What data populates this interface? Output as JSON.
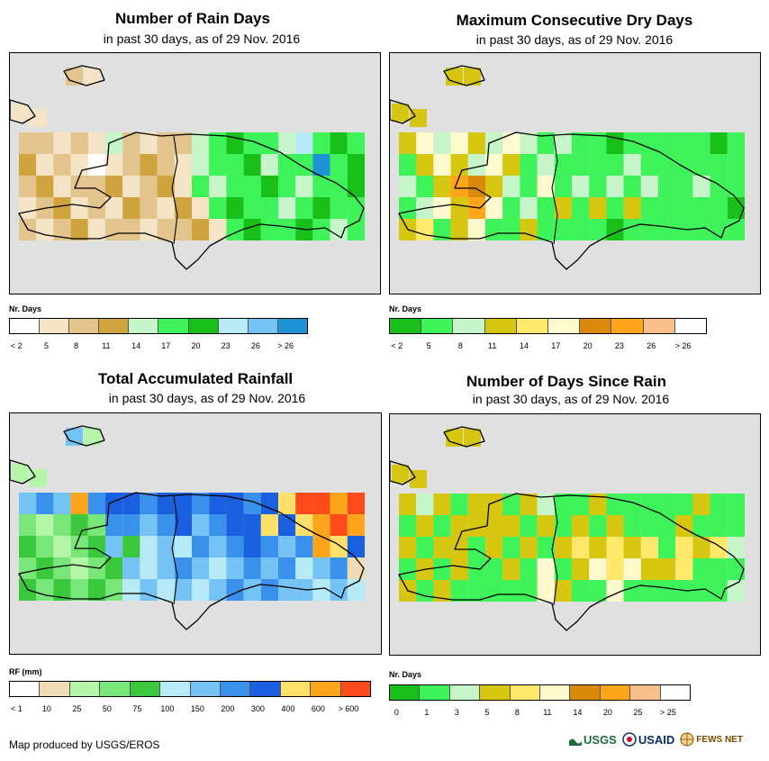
{
  "panels": [
    {
      "id": "rain-days",
      "title": "Number of Rain Days",
      "subtitle": "in past 30 days, as of 29 Nov. 2016",
      "legend_title": "Nr. Days",
      "legend_colors": [
        "#ffffff",
        "#f5e3c5",
        "#e3c48c",
        "#cfa33d",
        "#c5f5c8",
        "#3ef25a",
        "#19c019",
        "#b6eaf7",
        "#74c3f4",
        "#1e94d6"
      ],
      "legend_labels": [
        "< 2",
        "5",
        "8",
        "11",
        "14",
        "17",
        "20",
        "23",
        "26",
        "> 26"
      ],
      "grid_colors": [
        [
          "#e3c48c",
          "#e3c48c",
          "#f5e3c5",
          "#e3c48c",
          "#f5e3c5",
          "#c5f5c8",
          "#e3c48c",
          "#f5e3c5",
          "#e3c48c",
          "#e3c48c",
          "#c5f5c8",
          "#3ef25a",
          "#19c019",
          "#3ef25a",
          "#3ef25a",
          "#c5f5c8",
          "#b6eaf7",
          "#3ef25a",
          "#19c019",
          "#3ef25a"
        ],
        [
          "#cfa33d",
          "#f5e3c5",
          "#e3c48c",
          "#f5e3c5",
          "#ffffff",
          "#f5e3c5",
          "#e3c48c",
          "#cfa33d",
          "#e3c48c",
          "#f5e3c5",
          "#c5f5c8",
          "#3ef25a",
          "#3ef25a",
          "#19c019",
          "#c5f5c8",
          "#3ef25a",
          "#3ef25a",
          "#1e94d6",
          "#3ef25a",
          "#19c019"
        ],
        [
          "#e3c48c",
          "#cfa33d",
          "#f5e3c5",
          "#e3c48c",
          "#e3c48c",
          "#cfa33d",
          "#f5e3c5",
          "#e3c48c",
          "#cfa33d",
          "#f5e3c5",
          "#3ef25a",
          "#c5f5c8",
          "#3ef25a",
          "#3ef25a",
          "#19c019",
          "#3ef25a",
          "#c5f5c8",
          "#3ef25a",
          "#3ef25a",
          "#19c019"
        ],
        [
          "#f5e3c5",
          "#e3c48c",
          "#cfa33d",
          "#f5e3c5",
          "#e3c48c",
          "#f5e3c5",
          "#cfa33d",
          "#e3c48c",
          "#f5e3c5",
          "#cfa33d",
          "#f5e3c5",
          "#3ef25a",
          "#19c019",
          "#3ef25a",
          "#3ef25a",
          "#c5f5c8",
          "#3ef25a",
          "#19c019",
          "#3ef25a",
          "#3ef25a"
        ],
        [
          "#e3c48c",
          "#f5e3c5",
          "#e3c48c",
          "#cfa33d",
          "#f5e3c5",
          "#e3c48c",
          "#e3c48c",
          "#f5e3c5",
          "#e3c48c",
          "#e3c48c",
          "#cfa33d",
          "#f5e3c5",
          "#3ef25a",
          "#19c019",
          "#3ef25a",
          "#3ef25a",
          "#19c019",
          "#3ef25a",
          "#c5f5c8",
          "#3ef25a"
        ]
      ]
    },
    {
      "id": "dry-days",
      "title": "Maximum Consecutive Dry Days",
      "subtitle": "in past 30 days, as of 29 Nov. 2016",
      "legend_title": "Nr. Days",
      "legend_colors": [
        "#19c019",
        "#3ef25a",
        "#c5f5c8",
        "#d6c60f",
        "#ffe86a",
        "#fffacd",
        "#d98a0b",
        "#ffa51a",
        "#f9c08e",
        "#ffffff"
      ],
      "legend_labels": [
        "< 2",
        "5",
        "8",
        "11",
        "14",
        "17",
        "20",
        "23",
        "26",
        "> 26"
      ],
      "grid_colors": [
        [
          "#d6c60f",
          "#fffacd",
          "#c5f5c8",
          "#fffacd",
          "#d6c60f",
          "#c5f5c8",
          "#fffacd",
          "#c5f5c8",
          "#3ef25a",
          "#c5f5c8",
          "#3ef25a",
          "#3ef25a",
          "#19c019",
          "#3ef25a",
          "#3ef25a",
          "#3ef25a",
          "#3ef25a",
          "#3ef25a",
          "#19c019",
          "#3ef25a"
        ],
        [
          "#3ef25a",
          "#d6c60f",
          "#fffacd",
          "#d6c60f",
          "#c5f5c8",
          "#fffacd",
          "#d6c60f",
          "#3ef25a",
          "#c5f5c8",
          "#3ef25a",
          "#3ef25a",
          "#3ef25a",
          "#3ef25a",
          "#c5f5c8",
          "#3ef25a",
          "#3ef25a",
          "#3ef25a",
          "#3ef25a",
          "#3ef25a",
          "#3ef25a"
        ],
        [
          "#c5f5c8",
          "#3ef25a",
          "#d6c60f",
          "#ffa51a",
          "#d98a0b",
          "#d6c60f",
          "#c5f5c8",
          "#3ef25a",
          "#fffacd",
          "#3ef25a",
          "#c5f5c8",
          "#3ef25a",
          "#c5f5c8",
          "#3ef25a",
          "#c5f5c8",
          "#3ef25a",
          "#3ef25a",
          "#c5f5c8",
          "#3ef25a",
          "#3ef25a"
        ],
        [
          "#3ef25a",
          "#c5f5c8",
          "#fffacd",
          "#d6c60f",
          "#ffa51a",
          "#fffacd",
          "#3ef25a",
          "#c5f5c8",
          "#3ef25a",
          "#d6c60f",
          "#3ef25a",
          "#d6c60f",
          "#3ef25a",
          "#d6c60f",
          "#3ef25a",
          "#3ef25a",
          "#3ef25a",
          "#3ef25a",
          "#3ef25a",
          "#19c019"
        ],
        [
          "#d6c60f",
          "#ffe86a",
          "#3ef25a",
          "#d6c60f",
          "#fffacd",
          "#3ef25a",
          "#3ef25a",
          "#d6c60f",
          "#3ef25a",
          "#3ef25a",
          "#3ef25a",
          "#3ef25a",
          "#19c019",
          "#3ef25a",
          "#3ef25a",
          "#3ef25a",
          "#3ef25a",
          "#3ef25a",
          "#3ef25a",
          "#3ef25a"
        ]
      ]
    },
    {
      "id": "rainfall",
      "title": "Total Accumulated Rainfall",
      "subtitle": "in past 30 days, as of 29 Nov. 2016",
      "legend_title": "RF (mm)",
      "legend_colors": [
        "#ffffff",
        "#f0dcb4",
        "#b4f5a8",
        "#78e678",
        "#3cc83c",
        "#b6eaf7",
        "#74c3f4",
        "#3a91ec",
        "#1a5fe0",
        "#ffe06a",
        "#ffa51a",
        "#ff4b1a"
      ],
      "legend_labels": [
        "< 1",
        "10",
        "25",
        "50",
        "75",
        "100",
        "150",
        "200",
        "300",
        "400",
        "600",
        "> 600"
      ],
      "grid_colors": [
        [
          "#74c3f4",
          "#3a91ec",
          "#74c3f4",
          "#ffa51a",
          "#3a91ec",
          "#1a5fe0",
          "#1a5fe0",
          "#3a91ec",
          "#1a5fe0",
          "#1a5fe0",
          "#3a91ec",
          "#1a5fe0",
          "#1a5fe0",
          "#3a91ec",
          "#1a5fe0",
          "#ffe06a",
          "#ff4b1a",
          "#ff4b1a",
          "#ffa51a",
          "#ff4b1a"
        ],
        [
          "#78e678",
          "#b4f5a8",
          "#78e678",
          "#3cc83c",
          "#78e678",
          "#3a91ec",
          "#3a91ec",
          "#74c3f4",
          "#3a91ec",
          "#1a5fe0",
          "#74c3f4",
          "#3a91ec",
          "#1a5fe0",
          "#1a5fe0",
          "#ffe06a",
          "#1a5fe0",
          "#ffe06a",
          "#ffa51a",
          "#ff4b1a",
          "#ffa51a"
        ],
        [
          "#3cc83c",
          "#78e678",
          "#b4f5a8",
          "#78e678",
          "#3cc83c",
          "#74c3f4",
          "#3cc83c",
          "#b6eaf7",
          "#74c3f4",
          "#b6eaf7",
          "#3a91ec",
          "#74c3f4",
          "#3a91ec",
          "#1a5fe0",
          "#3a91ec",
          "#74c3f4",
          "#3a91ec",
          "#ffa51a",
          "#ffe06a",
          "#1a5fe0"
        ],
        [
          "#78e678",
          "#3cc83c",
          "#78e678",
          "#b4f5a8",
          "#78e678",
          "#3cc83c",
          "#74c3f4",
          "#b6eaf7",
          "#74c3f4",
          "#3a91ec",
          "#74c3f4",
          "#b6eaf7",
          "#74c3f4",
          "#3a91ec",
          "#74c3f4",
          "#3a91ec",
          "#b6eaf7",
          "#74c3f4",
          "#3a91ec",
          "#f0dcb4"
        ],
        [
          "#3cc83c",
          "#78e678",
          "#3cc83c",
          "#78e678",
          "#3cc83c",
          "#78e678",
          "#b6eaf7",
          "#74c3f4",
          "#b6eaf7",
          "#74c3f4",
          "#b6eaf7",
          "#74c3f4",
          "#3a91ec",
          "#74c3f4",
          "#3a91ec",
          "#74c3f4",
          "#74c3f4",
          "#b6eaf7",
          "#74c3f4",
          "#b6eaf7"
        ]
      ]
    },
    {
      "id": "days-since-rain",
      "title": "Number of Days Since Rain",
      "subtitle": "in past 30 days, as of 29 Nov. 2016",
      "legend_title": "Nr. Days",
      "legend_colors": [
        "#19c019",
        "#3ef25a",
        "#c5f5c8",
        "#d6c60f",
        "#ffe86a",
        "#fffacd",
        "#d98a0b",
        "#ffa51a",
        "#f9c08e",
        "#ffffff"
      ],
      "legend_labels": [
        "0",
        "1",
        "3",
        "5",
        "8",
        "11",
        "14",
        "20",
        "25",
        "> 25"
      ],
      "grid_colors": [
        [
          "#d6c60f",
          "#c5f5c8",
          "#d6c60f",
          "#3ef25a",
          "#d6c60f",
          "#d6c60f",
          "#3ef25a",
          "#d6c60f",
          "#c5f5c8",
          "#3ef25a",
          "#3ef25a",
          "#d6c60f",
          "#3ef25a",
          "#3ef25a",
          "#3ef25a",
          "#3ef25a",
          "#3ef25a",
          "#d6c60f",
          "#3ef25a",
          "#3ef25a"
        ],
        [
          "#3ef25a",
          "#d6c60f",
          "#3ef25a",
          "#d6c60f",
          "#d6c60f",
          "#d6c60f",
          "#d6c60f",
          "#3ef25a",
          "#d6c60f",
          "#3ef25a",
          "#d6c60f",
          "#3ef25a",
          "#d6c60f",
          "#3ef25a",
          "#3ef25a",
          "#3ef25a",
          "#d6c60f",
          "#3ef25a",
          "#3ef25a",
          "#3ef25a"
        ],
        [
          "#d6c60f",
          "#3ef25a",
          "#d6c60f",
          "#d6c60f",
          "#3ef25a",
          "#d6c60f",
          "#3ef25a",
          "#d6c60f",
          "#3ef25a",
          "#d6c60f",
          "#ffe86a",
          "#d6c60f",
          "#ffe86a",
          "#d6c60f",
          "#ffe86a",
          "#3ef25a",
          "#ffe86a",
          "#d6c60f",
          "#ffe86a",
          "#c5f5c8"
        ],
        [
          "#3ef25a",
          "#d6c60f",
          "#3ef25a",
          "#d6c60f",
          "#3ef25a",
          "#3ef25a",
          "#d6c60f",
          "#3ef25a",
          "#fffacd",
          "#3ef25a",
          "#d6c60f",
          "#fffacd",
          "#ffe86a",
          "#fffacd",
          "#d6c60f",
          "#d6c60f",
          "#ffe86a",
          "#3ef25a",
          "#3ef25a",
          "#3ef25a"
        ],
        [
          "#d6c60f",
          "#3ef25a",
          "#d6c60f",
          "#3ef25a",
          "#3ef25a",
          "#3ef25a",
          "#3ef25a",
          "#3ef25a",
          "#fffacd",
          "#d6c60f",
          "#3ef25a",
          "#3ef25a",
          "#fffacd",
          "#3ef25a",
          "#3ef25a",
          "#3ef25a",
          "#3ef25a",
          "#3ef25a",
          "#3ef25a",
          "#c5f5c8"
        ]
      ]
    }
  ],
  "footer": {
    "credit": "Map produced by USGS/EROS"
  },
  "logos": {
    "usgs": "USGS",
    "usaid": "USAID",
    "fews": "FEWS NET"
  },
  "colors": {
    "background_map": "#e0e0e0",
    "coastline": "#000000",
    "panel_border": "#000000"
  }
}
